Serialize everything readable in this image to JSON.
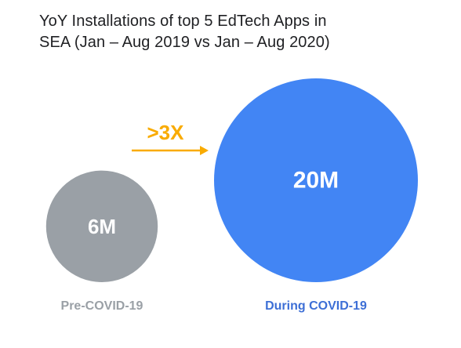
{
  "chart_data": {
    "type": "bubble",
    "title_lines": [
      "YoY Installations of top 5 EdTech Apps in",
      "SEA (Jan – Aug 2019 vs Jan – Aug 2020)"
    ],
    "categories": [
      "Pre-COVID-19",
      "During COVID-19"
    ],
    "values": [
      6,
      20
    ],
    "value_labels": [
      "6M",
      "20M"
    ],
    "unit": "M",
    "colors": [
      "#9aa0a6",
      "#4285f4"
    ],
    "label_colors": [
      "#9aa0a6",
      "#3d6fd6"
    ],
    "annotation": {
      "text": ">3X",
      "color": "#f9ab00",
      "from": "Pre-COVID-19",
      "to": "During COVID-19"
    },
    "legend": "none",
    "grid": false
  }
}
